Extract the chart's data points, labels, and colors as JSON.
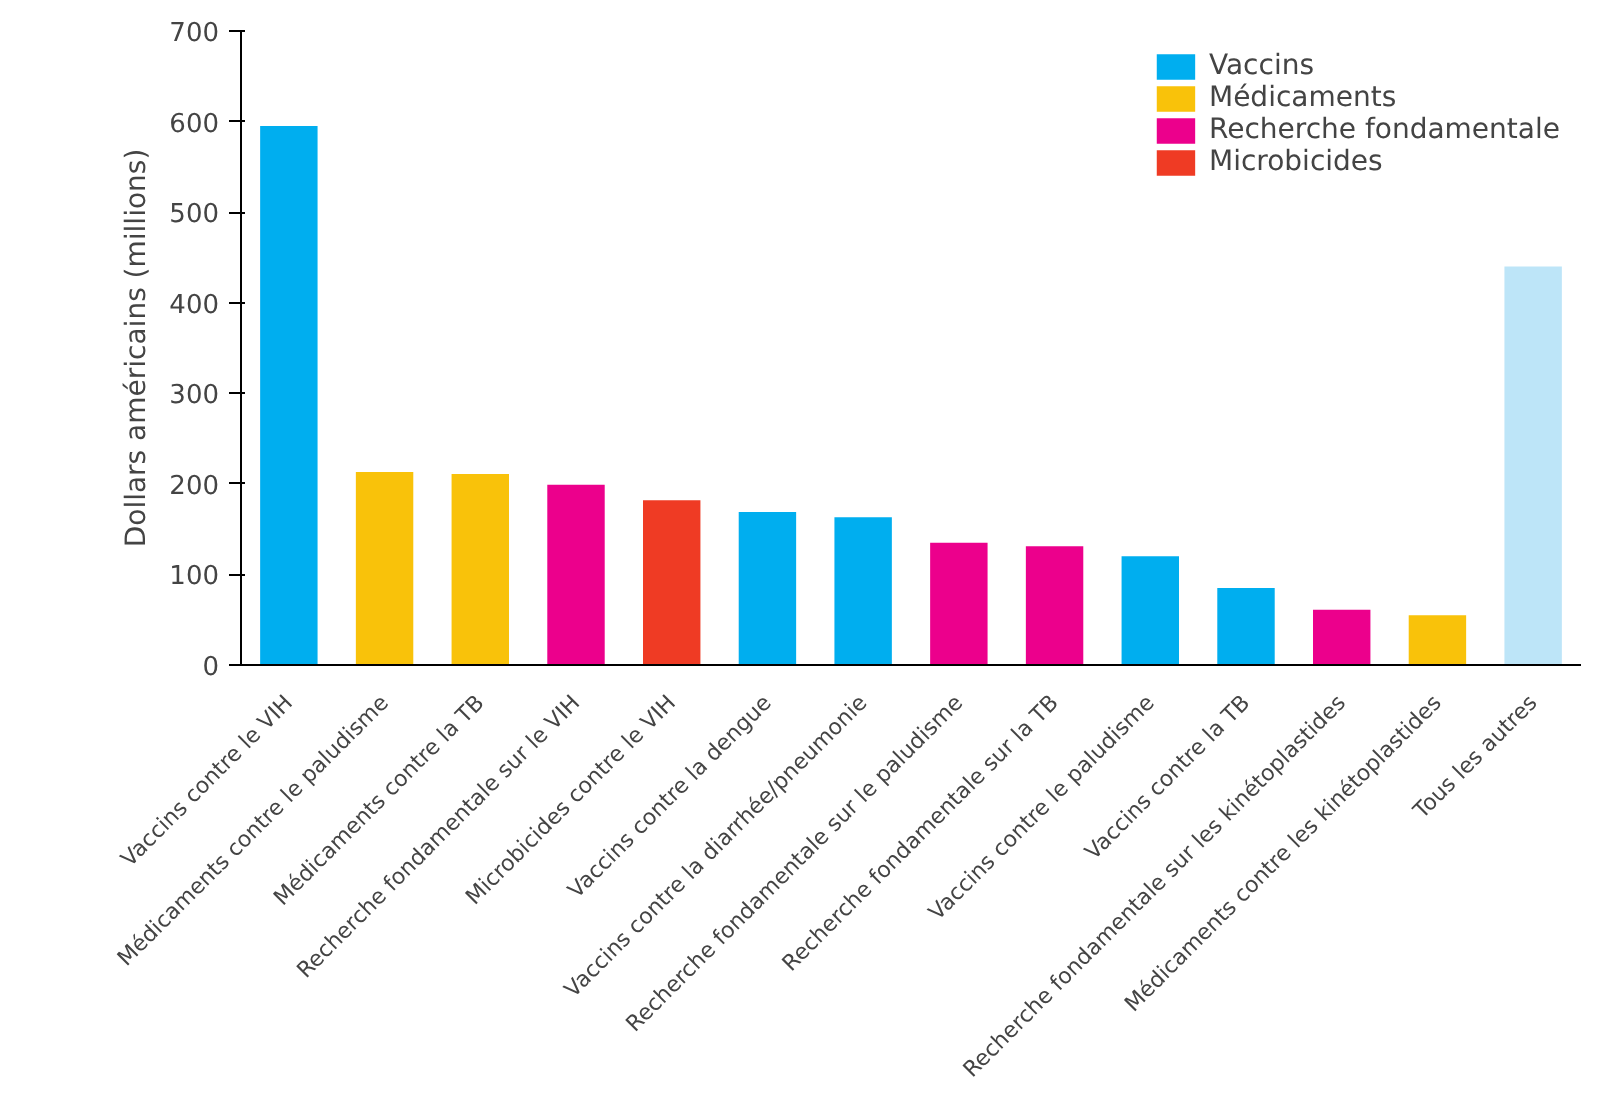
{
  "chart_data": {
    "type": "bar",
    "ylabel": "Dollars américains (millions)",
    "categories": [
      "Vaccins contre le VIH",
      "Médicaments contre le paludisme",
      "Médicaments contre la TB",
      "Recherche fondamentale sur le VIH",
      "Microbicides contre le VIH",
      "Vaccins contre la dengue",
      "Vaccins contre la diarrhée/pneumonie",
      "Recherche fondamentale sur le paludisme",
      "Recherche fondamentale sur la TB",
      "Vaccins contre le paludisme",
      "Vaccins contre la TB",
      "Recherche fondamentale sur les kinétoplastides",
      "Médicaments contre les kinétoplastides",
      "Tous les autres"
    ],
    "series": [
      {
        "name": "Vaccins",
        "color": "#00aeef",
        "values": [
          595,
          null,
          null,
          null,
          null,
          169,
          163,
          null,
          null,
          120,
          85,
          null,
          null,
          null
        ]
      },
      {
        "name": "Médicaments",
        "color": "#f9c20a",
        "values": [
          null,
          213,
          211,
          null,
          null,
          null,
          null,
          null,
          null,
          null,
          null,
          null,
          55,
          null
        ]
      },
      {
        "name": "Recherche fondamentale",
        "color": "#ec008c",
        "values": [
          null,
          null,
          null,
          199,
          null,
          null,
          null,
          135,
          131,
          null,
          null,
          61,
          null,
          null
        ]
      },
      {
        "name": "Microbicides",
        "color": "#ef3b24",
        "values": [
          null,
          null,
          null,
          null,
          182,
          null,
          null,
          null,
          null,
          null,
          null,
          null,
          null,
          null
        ]
      },
      {
        "color": "#bde5f8",
        "values": [
          null,
          null,
          null,
          null,
          null,
          null,
          null,
          null,
          null,
          null,
          null,
          null,
          null,
          440
        ]
      }
    ],
    "ylim": [
      0,
      700
    ],
    "yticks": [
      0,
      100,
      200,
      300,
      400,
      500,
      600,
      700
    ],
    "grid": false,
    "legend": "top right"
  }
}
